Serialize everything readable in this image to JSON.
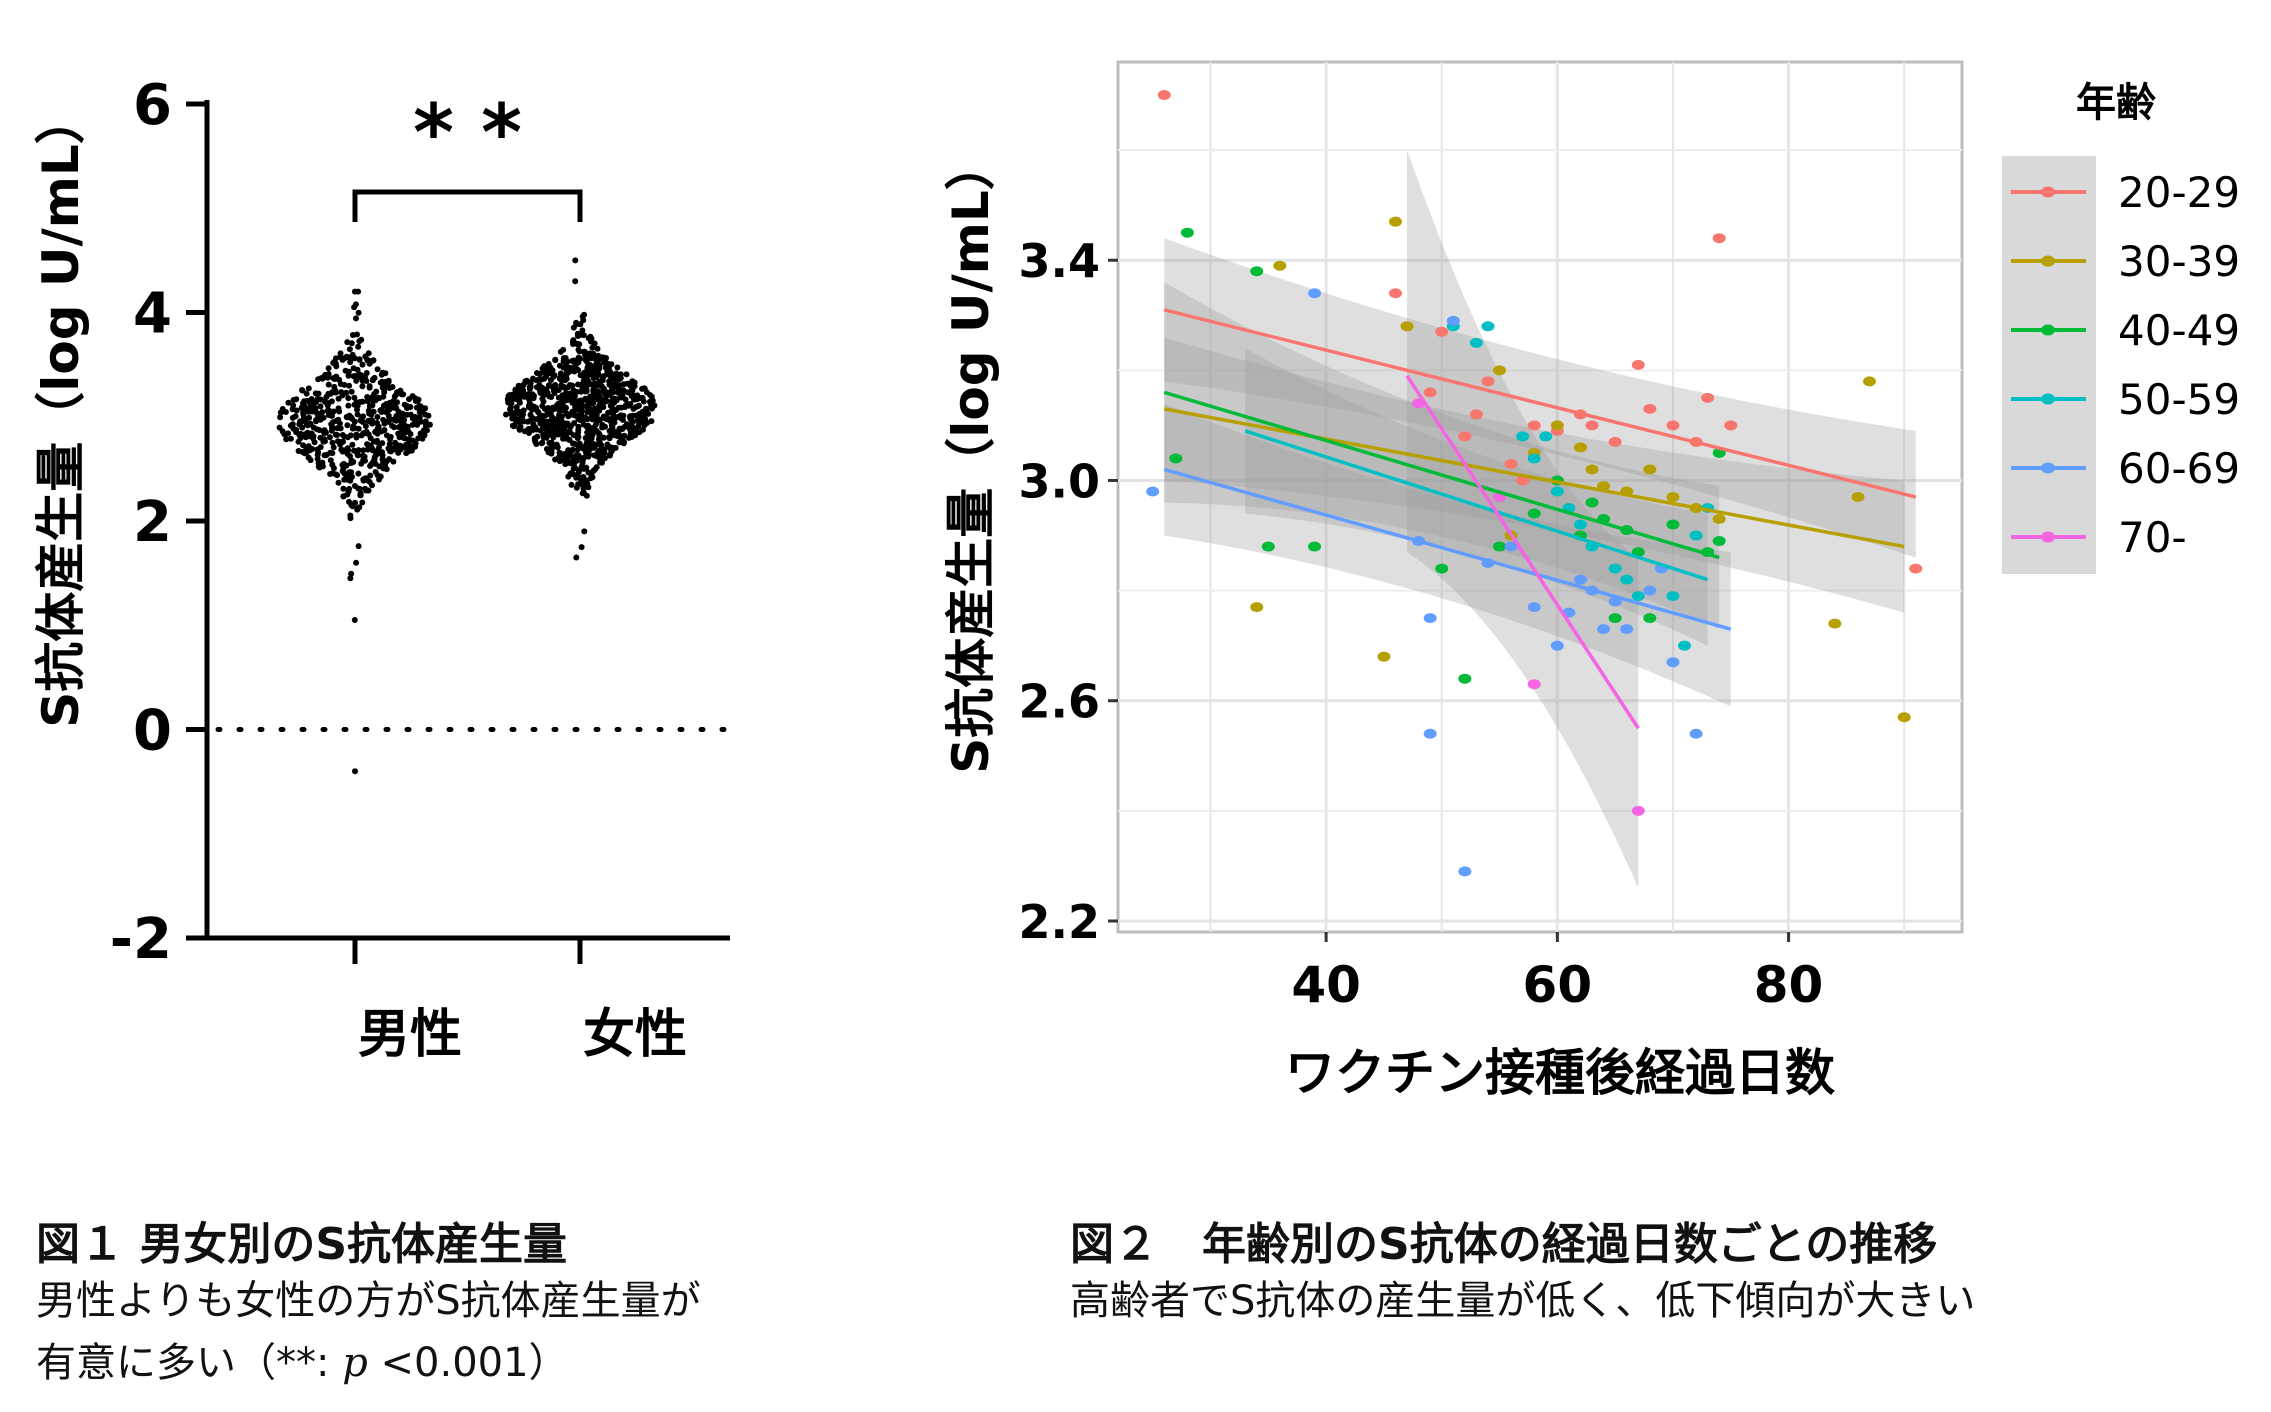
{
  "chart_data": [
    {
      "type": "scatter",
      "subtype": "beeswarm",
      "ylabel": "S抗体産生量（log U/mL）",
      "ylim": [
        -2,
        6
      ],
      "yticks": [
        -2,
        0,
        2,
        4,
        6
      ],
      "ytick_labels": [
        "-2",
        "0",
        "2",
        "4",
        "6"
      ],
      "categories": [
        "男性",
        "女性"
      ],
      "significance": "* *",
      "reference_line": 0,
      "groups": [
        {
          "name": "男性",
          "median": 2.95,
          "q1": 2.72,
          "q3": 3.18,
          "min": -0.4,
          "max": 4.2,
          "n": 600,
          "low_outliers": [
            1.05,
            1.45,
            1.6
          ],
          "high_outliers": [
            4.05,
            4.2
          ]
        },
        {
          "name": "女性",
          "median": 3.08,
          "q1": 2.88,
          "q3": 3.3,
          "min": 1.65,
          "max": 4.5,
          "n": 900,
          "low_outliers": [
            1.65,
            1.75,
            1.9
          ],
          "high_outliers": [
            4.3,
            4.5
          ]
        }
      ]
    },
    {
      "type": "scatter",
      "subtype": "scatter-with-regression",
      "xlabel": "ワクチン接種後経過日数",
      "ylabel": "S抗体産生量（log U/mL）",
      "xlim": [
        22,
        95
      ],
      "ylim": [
        2.18,
        3.76
      ],
      "xticks": [
        40,
        60,
        80
      ],
      "xtick_labels": [
        "40",
        "60",
        "80"
      ],
      "yticks": [
        2.2,
        2.6,
        3.0,
        3.4
      ],
      "ytick_labels": [
        "2.2",
        "2.6",
        "3.0",
        "3.4"
      ],
      "legend_title": "年齢",
      "legend_position": "right",
      "series": [
        {
          "name": "20-29",
          "color": "#F8766D",
          "fit": {
            "x": [
              26,
              91
            ],
            "y": [
              3.31,
              2.97
            ],
            "ci_lo": [
              3.18,
              2.86
            ],
            "ci_hi": [
              3.44,
              3.09
            ]
          },
          "points": [
            [
              26,
              3.7
            ],
            [
              46,
              3.34
            ],
            [
              50,
              3.27
            ],
            [
              54,
              3.18
            ],
            [
              53,
              3.12
            ],
            [
              56,
              3.03
            ],
            [
              58,
              3.1
            ],
            [
              60,
              3.09
            ],
            [
              62,
              3.12
            ],
            [
              63,
              3.1
            ],
            [
              65,
              3.07
            ],
            [
              67,
              3.21
            ],
            [
              68,
              3.13
            ],
            [
              70,
              3.1
            ],
            [
              72,
              3.07
            ],
            [
              73,
              3.15
            ],
            [
              74,
              3.44
            ],
            [
              75,
              3.1
            ],
            [
              91,
              2.84
            ],
            [
              57,
              3.0
            ],
            [
              52,
              3.08
            ],
            [
              49,
              3.16
            ]
          ]
        },
        {
          "name": "30-39",
          "color": "#B79F00",
          "fit": {
            "x": [
              26,
              90
            ],
            "y": [
              3.13,
              2.88
            ],
            "ci_lo": [
              3.0,
              2.76
            ],
            "ci_hi": [
              3.26,
              3.0
            ]
          },
          "points": [
            [
              34,
              2.77
            ],
            [
              36,
              3.39
            ],
            [
              46,
              3.47
            ],
            [
              47,
              3.28
            ],
            [
              45,
              2.68
            ],
            [
              55,
              3.2
            ],
            [
              58,
              3.05
            ],
            [
              60,
              3.1
            ],
            [
              62,
              3.06
            ],
            [
              63,
              3.02
            ],
            [
              64,
              2.99
            ],
            [
              66,
              2.98
            ],
            [
              68,
              3.02
            ],
            [
              70,
              2.97
            ],
            [
              72,
              2.95
            ],
            [
              74,
              2.93
            ],
            [
              86,
              2.97
            ],
            [
              87,
              3.18
            ],
            [
              84,
              2.74
            ],
            [
              90,
              2.57
            ],
            [
              56,
              2.9
            ]
          ]
        },
        {
          "name": "40-49",
          "color": "#00BA38",
          "fit": {
            "x": [
              26,
              74
            ],
            "y": [
              3.16,
              2.86
            ],
            "ci_lo": [
              2.96,
              2.73
            ],
            "ci_hi": [
              3.36,
              2.99
            ]
          },
          "points": [
            [
              28,
              3.45
            ],
            [
              27,
              3.04
            ],
            [
              34,
              3.38
            ],
            [
              35,
              2.88
            ],
            [
              39,
              2.88
            ],
            [
              50,
              2.84
            ],
            [
              52,
              2.64
            ],
            [
              55,
              2.88
            ],
            [
              58,
              2.94
            ],
            [
              60,
              3.0
            ],
            [
              62,
              2.9
            ],
            [
              63,
              2.96
            ],
            [
              64,
              2.93
            ],
            [
              66,
              2.91
            ],
            [
              67,
              2.87
            ],
            [
              68,
              2.75
            ],
            [
              70,
              2.92
            ],
            [
              72,
              2.9
            ],
            [
              73,
              2.87
            ],
            [
              74,
              3.05
            ],
            [
              74,
              2.89
            ],
            [
              65,
              2.75
            ]
          ]
        },
        {
          "name": "50-59",
          "color": "#00BFC4",
          "fit": {
            "x": [
              33,
              73
            ],
            "y": [
              3.09,
              2.82
            ],
            "ci_lo": [
              2.94,
              2.7
            ],
            "ci_hi": [
              3.24,
              2.94
            ]
          },
          "points": [
            [
              51,
              3.28
            ],
            [
              53,
              3.25
            ],
            [
              54,
              3.28
            ],
            [
              57,
              3.08
            ],
            [
              58,
              3.04
            ],
            [
              59,
              3.08
            ],
            [
              60,
              2.98
            ],
            [
              61,
              2.95
            ],
            [
              62,
              2.92
            ],
            [
              63,
              2.88
            ],
            [
              65,
              2.84
            ],
            [
              66,
              2.82
            ],
            [
              67,
              2.79
            ],
            [
              70,
              2.79
            ],
            [
              71,
              2.7
            ],
            [
              72,
              2.9
            ],
            [
              73,
              2.95
            ],
            [
              55,
              2.97
            ]
          ]
        },
        {
          "name": "60-69",
          "color": "#619CFF",
          "fit": {
            "x": [
              26,
              75
            ],
            "y": [
              3.02,
              2.73
            ],
            "ci_lo": [
              2.9,
              2.59
            ],
            "ci_hi": [
              3.14,
              2.87
            ]
          },
          "points": [
            [
              25,
              2.98
            ],
            [
              39,
              3.34
            ],
            [
              48,
              2.89
            ],
            [
              49,
              2.75
            ],
            [
              49,
              2.54
            ],
            [
              51,
              3.29
            ],
            [
              52,
              2.29
            ],
            [
              56,
              2.88
            ],
            [
              58,
              2.77
            ],
            [
              60,
              2.7
            ],
            [
              61,
              2.76
            ],
            [
              63,
              2.8
            ],
            [
              64,
              2.73
            ],
            [
              65,
              2.78
            ],
            [
              66,
              2.73
            ],
            [
              68,
              2.8
            ],
            [
              69,
              2.84
            ],
            [
              70,
              2.67
            ],
            [
              72,
              2.54
            ],
            [
              54,
              2.85
            ],
            [
              62,
              2.82
            ]
          ]
        },
        {
          "name": "70-",
          "color": "#F564E3",
          "fit": {
            "x": [
              47,
              67
            ],
            "y": [
              3.19,
              2.55
            ],
            "ci_lo": [
              2.87,
              2.26
            ],
            "ci_hi": [
              3.6,
              2.86
            ]
          },
          "points": [
            [
              58,
              2.63
            ],
            [
              67,
              2.4
            ],
            [
              48,
              3.14
            ],
            [
              55,
              2.97
            ]
          ]
        }
      ]
    }
  ],
  "captions": {
    "fig1_title": "図１ 男女別のS抗体産生量",
    "fig1_body_line1": "男性よりも女性の方がS抗体産生量が",
    "fig1_body_line2_prefix": "有意に多い（**: ",
    "fig1_body_p": "p",
    "fig1_body_line2_suffix": " <0.001）",
    "fig2_title": "図２　年齢別のS抗体の経過日数ごとの推移",
    "fig2_body": "高齢者でS抗体の産生量が低く、低下傾向が大きい"
  }
}
